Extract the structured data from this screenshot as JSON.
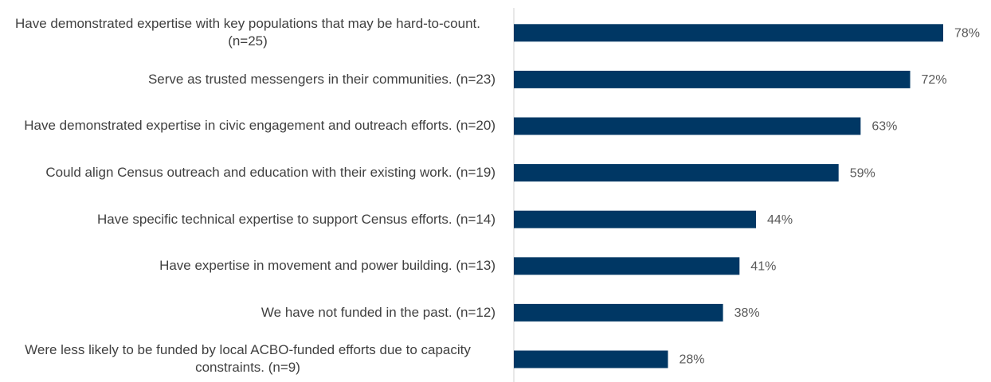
{
  "chart_data": {
    "type": "barh",
    "categories": [
      "Have demonstrated expertise with key populations that may be hard-to-count. (n=25)",
      "Serve as trusted messengers in their communities. (n=23)",
      "Have demonstrated expertise in civic engagement and outreach efforts. (n=20)",
      "Could align Census outreach and education with their existing work. (n=19)",
      "Have specific technical expertise to support Census efforts. (n=14)",
      "Have expertise in movement and power building. (n=13)",
      "We have not funded in the past. (n=12)",
      "Were less likely to be funded by local ACBO-funded efforts due to capacity constraints. (n=9)"
    ],
    "values": [
      78,
      72,
      63,
      59,
      44,
      41,
      38,
      28
    ],
    "value_labels": [
      "78%",
      "72%",
      "63%",
      "59%",
      "44%",
      "41%",
      "38%",
      "28%"
    ],
    "color": "#003764",
    "xlim": [
      0,
      100
    ]
  }
}
